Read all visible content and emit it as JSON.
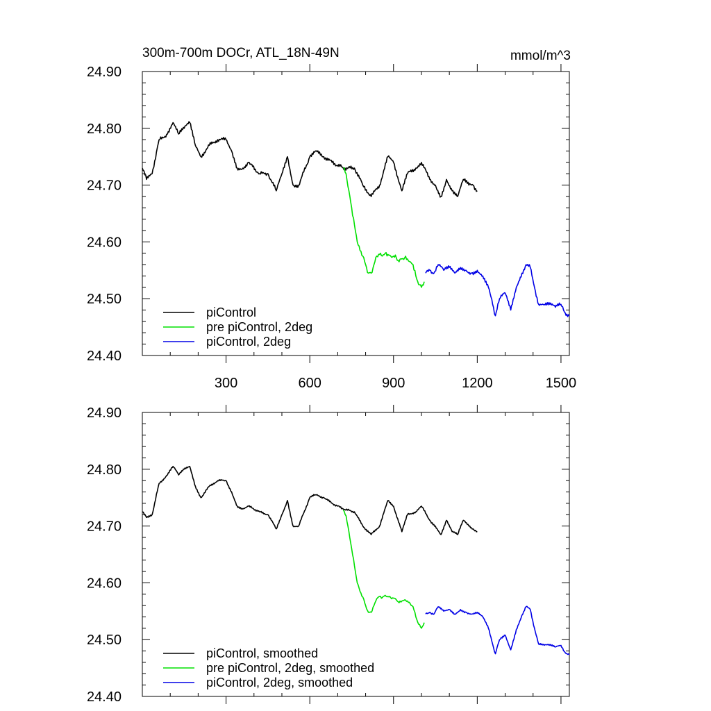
{
  "title": "300m-700m DOCr, ATL_18N-49N",
  "units": "mmol/m^3",
  "colors": {
    "piControl": "#000000",
    "pre": "#00e000",
    "twodeg": "#0000e6"
  },
  "chart_data": [
    {
      "type": "line",
      "xlim": [
        0,
        1530
      ],
      "ylim": [
        24.4,
        24.9
      ],
      "x_ticks": [
        300,
        600,
        900,
        1200,
        1500
      ],
      "x_tick_labels": [
        "300",
        "600",
        "900",
        "1200",
        "1500"
      ],
      "y_ticks": [
        24.4,
        24.5,
        24.6,
        24.7,
        24.8,
        24.9
      ],
      "y_tick_labels": [
        "24.40",
        "24.50",
        "24.60",
        "24.70",
        "24.80",
        "24.90"
      ],
      "legend": "bottom-left",
      "series": [
        {
          "name": "piControl",
          "color": "#000000",
          "x": [
            0,
            15,
            35,
            60,
            90,
            110,
            130,
            150,
            170,
            190,
            210,
            240,
            270,
            300,
            320,
            340,
            360,
            380,
            420,
            450,
            480,
            500,
            520,
            540,
            560,
            600,
            620,
            650,
            680,
            720,
            760,
            790,
            820,
            850,
            880,
            900,
            930,
            950,
            980,
            1000,
            1030,
            1050,
            1070,
            1090,
            1110,
            1130,
            1150,
            1170,
            1185,
            1200
          ],
          "y": [
            24.73,
            24.71,
            24.72,
            24.78,
            24.79,
            24.81,
            24.79,
            24.8,
            24.81,
            24.77,
            24.75,
            24.77,
            24.78,
            24.78,
            24.76,
            24.73,
            24.73,
            24.74,
            24.72,
            24.72,
            24.69,
            24.72,
            24.75,
            24.7,
            24.7,
            24.75,
            24.76,
            24.75,
            24.74,
            24.73,
            24.73,
            24.7,
            24.68,
            24.7,
            24.75,
            24.74,
            24.69,
            24.72,
            24.73,
            24.74,
            24.71,
            24.7,
            24.68,
            24.71,
            24.69,
            24.68,
            24.71,
            24.7,
            24.7,
            24.69
          ]
        },
        {
          "name": "pre piControl, 2deg",
          "color": "#00e000",
          "x": [
            720,
            730,
            740,
            750,
            760,
            770,
            780,
            790,
            800,
            810,
            820,
            830,
            840,
            850,
            860,
            870,
            880,
            890,
            900,
            910,
            920,
            930,
            940,
            950,
            960,
            970,
            980,
            990,
            1000,
            1010
          ],
          "y": [
            24.73,
            24.72,
            24.69,
            24.66,
            24.63,
            24.6,
            24.585,
            24.575,
            24.56,
            24.545,
            24.545,
            24.56,
            24.575,
            24.578,
            24.575,
            24.58,
            24.578,
            24.575,
            24.575,
            24.572,
            24.565,
            24.57,
            24.572,
            24.57,
            24.565,
            24.56,
            24.54,
            24.525,
            24.52,
            24.53
          ]
        },
        {
          "name": "piControl, 2deg",
          "color": "#0000e6",
          "x": [
            1015,
            1030,
            1045,
            1060,
            1080,
            1100,
            1120,
            1140,
            1160,
            1180,
            1200,
            1220,
            1240,
            1255,
            1265,
            1280,
            1300,
            1320,
            1340,
            1360,
            1375,
            1390,
            1405,
            1420,
            1440,
            1460,
            1480,
            1500,
            1515,
            1530
          ],
          "y": [
            24.545,
            24.55,
            24.545,
            24.56,
            24.55,
            24.555,
            24.545,
            24.555,
            24.55,
            24.545,
            24.55,
            24.54,
            24.52,
            24.49,
            24.47,
            24.5,
            24.51,
            24.48,
            24.52,
            24.545,
            24.56,
            24.555,
            24.52,
            24.49,
            24.49,
            24.49,
            24.485,
            24.49,
            24.475,
            24.47
          ]
        }
      ]
    },
    {
      "type": "line",
      "xlim": [
        0,
        1530
      ],
      "ylim": [
        24.4,
        24.9
      ],
      "x_ticks": [
        300,
        600,
        900,
        1200,
        1500
      ],
      "y_ticks": [
        24.4,
        24.5,
        24.6,
        24.7,
        24.8,
        24.9
      ],
      "y_tick_labels": [
        "24.40",
        "24.50",
        "24.60",
        "24.70",
        "24.80",
        "24.90"
      ],
      "legend": "bottom-left",
      "series": [
        {
          "name": "piControl, smoothed",
          "color": "#000000",
          "x": [
            0,
            15,
            35,
            60,
            90,
            110,
            130,
            150,
            170,
            190,
            210,
            240,
            270,
            300,
            320,
            340,
            360,
            380,
            420,
            450,
            480,
            500,
            520,
            540,
            560,
            600,
            620,
            650,
            680,
            720,
            760,
            790,
            820,
            850,
            880,
            900,
            930,
            950,
            980,
            1000,
            1030,
            1050,
            1070,
            1090,
            1110,
            1130,
            1150,
            1170,
            1185,
            1200
          ],
          "y": [
            24.725,
            24.715,
            24.72,
            24.775,
            24.79,
            24.805,
            24.79,
            24.8,
            24.805,
            24.77,
            24.75,
            24.77,
            24.78,
            24.78,
            24.76,
            24.735,
            24.73,
            24.735,
            24.725,
            24.72,
            24.695,
            24.72,
            24.745,
            24.7,
            24.7,
            24.75,
            24.755,
            24.75,
            24.74,
            24.73,
            24.725,
            24.7,
            24.685,
            24.7,
            24.745,
            24.735,
            24.69,
            24.72,
            24.725,
            24.735,
            24.71,
            24.7,
            24.685,
            24.71,
            24.69,
            24.685,
            24.71,
            24.7,
            24.695,
            24.69
          ]
        },
        {
          "name": "pre piControl, 2deg, smoothed",
          "color": "#00e000",
          "x": [
            720,
            730,
            740,
            750,
            760,
            770,
            780,
            790,
            800,
            810,
            820,
            830,
            840,
            850,
            860,
            870,
            880,
            890,
            900,
            910,
            920,
            930,
            940,
            950,
            960,
            970,
            980,
            990,
            1000,
            1010
          ],
          "y": [
            24.728,
            24.718,
            24.69,
            24.66,
            24.63,
            24.6,
            24.585,
            24.575,
            24.56,
            24.548,
            24.548,
            24.56,
            24.572,
            24.576,
            24.574,
            24.578,
            24.576,
            24.574,
            24.573,
            24.57,
            24.565,
            24.568,
            24.57,
            24.568,
            24.563,
            24.558,
            24.54,
            24.527,
            24.52,
            24.53
          ]
        },
        {
          "name": "piControl, 2deg, smoothed",
          "color": "#0000e6",
          "x": [
            1015,
            1030,
            1045,
            1060,
            1080,
            1100,
            1120,
            1140,
            1160,
            1180,
            1200,
            1220,
            1240,
            1255,
            1265,
            1280,
            1300,
            1320,
            1340,
            1360,
            1375,
            1390,
            1405,
            1420,
            1440,
            1460,
            1480,
            1500,
            1515,
            1530
          ],
          "y": [
            24.545,
            24.548,
            24.545,
            24.558,
            24.55,
            24.553,
            24.545,
            24.553,
            24.548,
            24.545,
            24.548,
            24.54,
            24.52,
            24.492,
            24.475,
            24.5,
            24.508,
            24.482,
            24.518,
            24.543,
            24.558,
            24.553,
            24.52,
            24.492,
            24.49,
            24.49,
            24.487,
            24.49,
            24.477,
            24.473
          ]
        }
      ]
    }
  ]
}
